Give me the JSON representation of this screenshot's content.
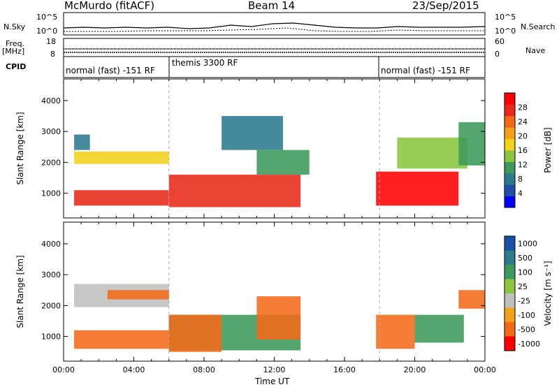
{
  "header": {
    "station": "McMurdo (fitACF)",
    "beam": "Beam 14",
    "date": "23/Sep/2015"
  },
  "top_panels": {
    "nsky_label": "N.Sky",
    "nsearch_label": "N.Search",
    "noise_ticks_left": [
      "10^5",
      "10^0"
    ],
    "noise_ticks_right": [
      "10^5",
      "10^0"
    ],
    "freq_label_line1": "Freq.",
    "freq_label_line2": "[MHz]",
    "freq_ticks": [
      "18",
      "8"
    ],
    "nave_label": "Nave",
    "nave_ticks": [
      "60",
      "0"
    ],
    "cpid_label": "CPID",
    "modes": [
      "normal (fast) -151 RF",
      "themis 3300 RF",
      "normal (fast) -151 RF"
    ]
  },
  "chart_data": [
    {
      "type": "heatmap",
      "name": "power",
      "ylabel": "Slant Range [km]",
      "xlabel": "",
      "x_ticks": [
        "00:00",
        "04:00",
        "08:00",
        "12:00",
        "16:00",
        "20:00",
        "00:00"
      ],
      "y_ticks": [
        1000,
        2000,
        3000,
        4000
      ],
      "ylim": [
        200,
        4700
      ],
      "colorbar": {
        "label": "Power [dB]",
        "ticks": [
          4,
          8,
          12,
          16,
          20,
          24,
          28
        ],
        "range": [
          0,
          32
        ],
        "colors": [
          "#0000ff",
          "#1f4fa8",
          "#2d7a8e",
          "#3d9a5a",
          "#8cc63f",
          "#f2d21b",
          "#f5a019",
          "#f26a18",
          "#e8281a",
          "#ff0000"
        ]
      },
      "regions": [
        {
          "t0": 0.6,
          "t1": 6.0,
          "r0": 600,
          "r1": 1100,
          "v": 26
        },
        {
          "t0": 0.6,
          "t1": 6.0,
          "r0": 1950,
          "r1": 2350,
          "v": 18
        },
        {
          "t0": 0.6,
          "t1": 1.5,
          "r0": 2400,
          "r1": 2900,
          "v": 9
        },
        {
          "t0": 6.0,
          "t1": 13.5,
          "r0": 550,
          "r1": 1600,
          "v": 28
        },
        {
          "t0": 9.0,
          "t1": 12.5,
          "r0": 2400,
          "r1": 3500,
          "v": 8
        },
        {
          "t0": 11.0,
          "t1": 14.0,
          "r0": 1600,
          "r1": 2400,
          "v": 12
        },
        {
          "t0": 17.8,
          "t1": 22.5,
          "r0": 600,
          "r1": 1700,
          "v": 30
        },
        {
          "t0": 19.0,
          "t1": 23.0,
          "r0": 1800,
          "r1": 2800,
          "v": 14
        },
        {
          "t0": 22.5,
          "t1": 24.0,
          "r0": 1900,
          "r1": 3300,
          "v": 10
        }
      ]
    },
    {
      "type": "heatmap",
      "name": "velocity",
      "ylabel": "Slant Range [km]",
      "xlabel": "Time UT",
      "x_ticks": [
        "00:00",
        "04:00",
        "08:00",
        "12:00",
        "16:00",
        "20:00",
        "00:00"
      ],
      "y_ticks": [
        1000,
        2000,
        3000,
        4000
      ],
      "ylim": [
        200,
        4700
      ],
      "colorbar": {
        "label": "Velocity [m s⁻¹]",
        "ticks": [
          "1000",
          "500",
          "100",
          "25",
          "-25",
          "-100",
          "-500",
          "-1000"
        ],
        "colors": [
          "#1a4fa8",
          "#2d7a8e",
          "#3d9a5a",
          "#8cc63f",
          "#bfbfbf",
          "#f5a019",
          "#f26a18",
          "#ff0000"
        ]
      },
      "regions": [
        {
          "t0": 0.6,
          "t1": 6.0,
          "r0": 600,
          "r1": 1200,
          "v": -150
        },
        {
          "t0": 0.6,
          "t1": 6.0,
          "r0": 1950,
          "r1": 2700,
          "v": 0
        },
        {
          "t0": 2.5,
          "t1": 6.0,
          "r0": 2200,
          "r1": 2500,
          "v": -200
        },
        {
          "t0": 6.0,
          "t1": 13.5,
          "r0": 550,
          "r1": 1700,
          "v": 200
        },
        {
          "t0": 6.0,
          "t1": 9.0,
          "r0": 500,
          "r1": 1700,
          "v": -150
        },
        {
          "t0": 11.0,
          "t1": 13.5,
          "r0": 900,
          "r1": 2300,
          "v": -200
        },
        {
          "t0": 17.8,
          "t1": 20.0,
          "r0": 600,
          "r1": 1700,
          "v": -400
        },
        {
          "t0": 20.0,
          "t1": 22.8,
          "r0": 800,
          "r1": 1700,
          "v": 250
        },
        {
          "t0": 22.5,
          "t1": 24.0,
          "r0": 1900,
          "r1": 2500,
          "v": -150
        }
      ]
    }
  ]
}
